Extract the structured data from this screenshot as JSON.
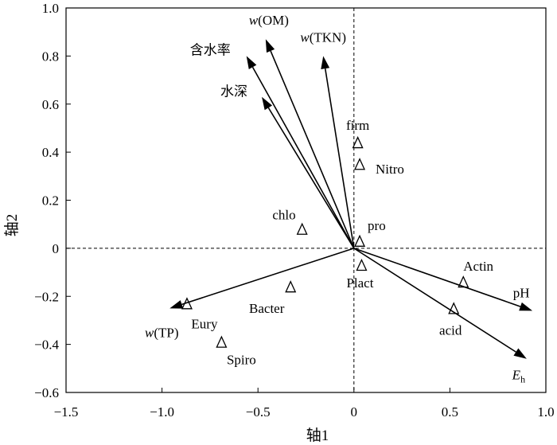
{
  "chart_data": {
    "type": "scatter",
    "xlabel": "轴1",
    "ylabel": "轴2",
    "xlim": [
      -1.5,
      1.0
    ],
    "ylim": [
      -0.6,
      1.0
    ],
    "xticks": [
      -1.5,
      -1.0,
      -0.5,
      0,
      0.5,
      1.0
    ],
    "xtick_labels": [
      "−1.5",
      "−1.0",
      "−0.5",
      "0",
      "0.5",
      "1.0"
    ],
    "yticks": [
      -0.6,
      -0.4,
      -0.2,
      0,
      0.2,
      0.4,
      0.6,
      0.8,
      1.0
    ],
    "ytick_labels": [
      "−0.6",
      "−0.4",
      "−0.2",
      "0",
      "0.2",
      "0.4",
      "0.6",
      "0.8",
      "1.0"
    ],
    "grid": false,
    "zero_lines": true,
    "vectors": [
      {
        "name": "w(OM)",
        "italic_prefix": "w",
        "rest": "(OM)",
        "x": -0.46,
        "y": 0.87
      },
      {
        "name": "w(TKN)",
        "italic_prefix": "w",
        "rest": "(TKN)",
        "x": -0.16,
        "y": 0.8
      },
      {
        "name": "含水率",
        "italic_prefix": "",
        "rest": "含水率",
        "x": -0.56,
        "y": 0.8
      },
      {
        "name": "水深",
        "italic_prefix": "",
        "rest": "水深",
        "x": -0.48,
        "y": 0.63
      },
      {
        "name": "w(TP)",
        "italic_prefix": "w",
        "rest": "(TP)",
        "x": -0.96,
        "y": -0.25
      },
      {
        "name": "pH",
        "italic_prefix": "",
        "rest": "pH",
        "x": 0.93,
        "y": -0.26
      },
      {
        "name": "Eh",
        "italic_prefix": "E",
        "rest": "h",
        "x": 0.9,
        "y": -0.46
      }
    ],
    "species": [
      {
        "name": "firm",
        "x": 0.02,
        "y": 0.44
      },
      {
        "name": "Nitro",
        "x": 0.03,
        "y": 0.35
      },
      {
        "name": "chlo",
        "x": -0.27,
        "y": 0.08
      },
      {
        "name": "pro",
        "x": 0.03,
        "y": 0.03
      },
      {
        "name": "Plact",
        "x": 0.04,
        "y": -0.07
      },
      {
        "name": "Actin",
        "x": 0.57,
        "y": -0.14
      },
      {
        "name": "acid",
        "x": 0.52,
        "y": -0.25
      },
      {
        "name": "Bacter",
        "x": -0.33,
        "y": -0.16
      },
      {
        "name": "Eury",
        "x": -0.87,
        "y": -0.23
      },
      {
        "name": "Spiro",
        "x": -0.69,
        "y": -0.39
      }
    ]
  }
}
